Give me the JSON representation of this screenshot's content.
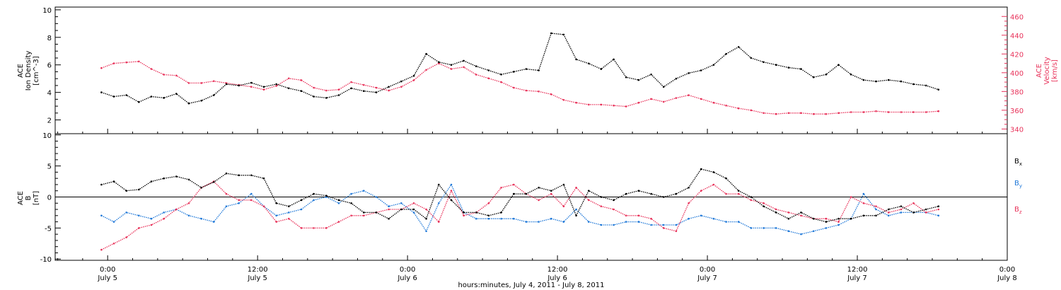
{
  "chart_data": [
    {
      "type": "scatter",
      "panel": "top",
      "ylabel_lines": [
        "ACE",
        "Ion Density",
        "[cm^-3]"
      ],
      "y2label_lines": [
        "ACE",
        "Velocity",
        "[km/s]"
      ],
      "ylim": [
        1,
        10.2
      ],
      "yticks": [
        2,
        4,
        6,
        8,
        10
      ],
      "y2lim": [
        335,
        470
      ],
      "y2ticks": [
        340,
        360,
        380,
        400,
        420,
        440,
        460
      ],
      "series_colors": {
        "density": "#000000",
        "velocity": "#e8325a"
      },
      "series": [
        {
          "name": "",
          "color": "#000000",
          "axis": "left",
          "t": [
            -0.5,
            0.5,
            1.5,
            2.5,
            3.5,
            4.5,
            5.5,
            6.5,
            7.5,
            8.5,
            9.5,
            10.5,
            11.5,
            12.5,
            13.5,
            14.5,
            15.5,
            16.5,
            17.5,
            18.5,
            19.5,
            20.5,
            21.5,
            22.5,
            23.5,
            24.5,
            25.5,
            26.5,
            27.5,
            28.5,
            29.5,
            30.5,
            31.5,
            32.5,
            33.5,
            34.5,
            35.5,
            36.5,
            37.5,
            38.5,
            39.5,
            40.5,
            41.5,
            42.5,
            43.5,
            44.5,
            45.5,
            46.5,
            47.5,
            48.5,
            49.5,
            50.5,
            51.5,
            52.5,
            53.5,
            54.5,
            55.5,
            56.5,
            57.5,
            58.5,
            59.5,
            60.5,
            61.5,
            62.5,
            63.5,
            64.5,
            65.5,
            66.5
          ],
          "values": [
            4.0,
            3.7,
            3.8,
            3.3,
            3.7,
            3.6,
            3.9,
            3.2,
            3.4,
            3.8,
            4.6,
            4.5,
            4.7,
            4.4,
            4.6,
            4.3,
            4.1,
            3.7,
            3.6,
            3.8,
            4.3,
            4.1,
            4.0,
            4.4,
            4.8,
            5.2,
            6.8,
            6.2,
            6.0,
            6.3,
            5.9,
            5.6,
            5.3,
            5.5,
            5.7,
            5.6,
            8.3,
            8.2,
            6.4,
            6.1,
            5.7,
            6.4,
            5.1,
            4.9,
            5.3,
            4.4,
            5.0,
            5.4,
            5.6,
            6.0,
            6.8,
            7.3,
            6.5,
            6.2,
            6.0,
            5.8,
            5.7,
            5.1,
            5.3,
            6.0,
            5.3,
            4.9,
            4.8,
            4.9,
            4.8,
            4.6,
            4.5,
            4.2
          ]
        },
        {
          "name": "",
          "color": "#e8325a",
          "axis": "right",
          "t": [
            -0.5,
            0.5,
            1.5,
            2.5,
            3.5,
            4.5,
            5.5,
            6.5,
            7.5,
            8.5,
            9.5,
            10.5,
            11.5,
            12.5,
            13.5,
            14.5,
            15.5,
            16.5,
            17.5,
            18.5,
            19.5,
            20.5,
            21.5,
            22.5,
            23.5,
            24.5,
            25.5,
            26.5,
            27.5,
            28.5,
            29.5,
            30.5,
            31.5,
            32.5,
            33.5,
            34.5,
            35.5,
            36.5,
            37.5,
            38.5,
            39.5,
            40.5,
            41.5,
            42.5,
            43.5,
            44.5,
            45.5,
            46.5,
            47.5,
            48.5,
            49.5,
            50.5,
            51.5,
            52.5,
            53.5,
            54.5,
            55.5,
            56.5,
            57.5,
            58.5,
            59.5,
            60.5,
            61.5,
            62.5,
            63.5,
            64.5,
            65.5,
            66.5
          ],
          "values": [
            405,
            410,
            411,
            412,
            404,
            398,
            397,
            389,
            389,
            391,
            389,
            387,
            385,
            382,
            386,
            394,
            392,
            384,
            381,
            382,
            390,
            387,
            384,
            381,
            385,
            392,
            403,
            410,
            404,
            406,
            398,
            394,
            390,
            384,
            381,
            380,
            377,
            371,
            368,
            366,
            366,
            365,
            364,
            368,
            372,
            369,
            373,
            376,
            372,
            368,
            365,
            362,
            360,
            357,
            356,
            357,
            357,
            356,
            356,
            357,
            358,
            358,
            359,
            358,
            358,
            358,
            358,
            359
          ]
        }
      ]
    },
    {
      "type": "scatter",
      "panel": "bottom",
      "ylabel_lines": [
        "ACE",
        "B",
        "[nT]"
      ],
      "ylim": [
        -10.2,
        10.2
      ],
      "yticks": [
        -10,
        -5,
        0,
        5,
        10
      ],
      "zero_line": true,
      "series": [
        {
          "name": "Bx",
          "color": "#000000",
          "t": [
            -0.5,
            0.5,
            1.5,
            2.5,
            3.5,
            4.5,
            5.5,
            6.5,
            7.5,
            8.5,
            9.5,
            10.5,
            11.5,
            12.5,
            13.5,
            14.5,
            15.5,
            16.5,
            17.5,
            18.5,
            19.5,
            20.5,
            21.5,
            22.5,
            23.5,
            24.5,
            25.5,
            26.5,
            27.5,
            28.5,
            29.5,
            30.5,
            31.5,
            32.5,
            33.5,
            34.5,
            35.5,
            36.5,
            37.5,
            38.5,
            39.5,
            40.5,
            41.5,
            42.5,
            43.5,
            44.5,
            45.5,
            46.5,
            47.5,
            48.5,
            49.5,
            50.5,
            51.5,
            52.5,
            53.5,
            54.5,
            55.5,
            56.5,
            57.5,
            58.5,
            59.5,
            60.5,
            61.5,
            62.5,
            63.5,
            64.5,
            65.5,
            66.5
          ],
          "values": [
            2.0,
            2.5,
            1.0,
            1.2,
            2.5,
            3.0,
            3.3,
            2.8,
            1.5,
            2.4,
            3.8,
            3.5,
            3.5,
            3.0,
            -1.0,
            -1.5,
            -0.5,
            0.5,
            0.2,
            -0.5,
            -1.0,
            -2.5,
            -2.5,
            -3.5,
            -2.0,
            -2.0,
            -3.5,
            2.0,
            -0.5,
            -2.5,
            -2.5,
            -3.0,
            -2.5,
            0.5,
            0.5,
            1.5,
            1.0,
            2.0,
            -3.0,
            1.0,
            0.0,
            -0.5,
            0.5,
            1.0,
            0.5,
            0.0,
            0.5,
            1.5,
            4.5,
            4.0,
            3.0,
            1.0,
            0.0,
            -1.5,
            -2.5,
            -3.5,
            -2.5,
            -3.5,
            -4.0,
            -3.5,
            -3.5,
            -3.0,
            -3.0,
            -2.0,
            -1.5,
            -2.5,
            -2.0,
            -1.5
          ]
        },
        {
          "name": "By",
          "color": "#1f78d8",
          "t": [
            -0.5,
            0.5,
            1.5,
            2.5,
            3.5,
            4.5,
            5.5,
            6.5,
            7.5,
            8.5,
            9.5,
            10.5,
            11.5,
            12.5,
            13.5,
            14.5,
            15.5,
            16.5,
            17.5,
            18.5,
            19.5,
            20.5,
            21.5,
            22.5,
            23.5,
            24.5,
            25.5,
            26.5,
            27.5,
            28.5,
            29.5,
            30.5,
            31.5,
            32.5,
            33.5,
            34.5,
            35.5,
            36.5,
            37.5,
            38.5,
            39.5,
            40.5,
            41.5,
            42.5,
            43.5,
            44.5,
            45.5,
            46.5,
            47.5,
            48.5,
            49.5,
            50.5,
            51.5,
            52.5,
            53.5,
            54.5,
            55.5,
            56.5,
            57.5,
            58.5,
            59.5,
            60.5,
            61.5,
            62.5,
            63.5,
            64.5,
            65.5,
            66.5
          ],
          "values": [
            -3.0,
            -4.0,
            -2.5,
            -3.0,
            -3.5,
            -2.5,
            -2.0,
            -3.0,
            -3.5,
            -4.0,
            -1.5,
            -1.0,
            0.5,
            -1.5,
            -3.0,
            -2.5,
            -2.0,
            -0.5,
            0.0,
            -1.0,
            0.5,
            1.0,
            0.0,
            -1.5,
            -1.0,
            -2.5,
            -5.5,
            -1.0,
            2.0,
            -2.5,
            -3.5,
            -3.5,
            -3.5,
            -3.5,
            -4.0,
            -4.0,
            -3.5,
            -4.0,
            -2.0,
            -4.0,
            -4.5,
            -4.5,
            -4.0,
            -4.0,
            -4.5,
            -4.5,
            -4.5,
            -3.5,
            -3.0,
            -3.5,
            -4.0,
            -4.0,
            -5.0,
            -5.0,
            -5.0,
            -5.5,
            -6.0,
            -5.5,
            -5.0,
            -4.5,
            -3.5,
            0.5,
            -2.0,
            -3.0,
            -2.5,
            -2.5,
            -2.5,
            -3.0
          ]
        },
        {
          "name": "Bz",
          "color": "#e8325a",
          "t": [
            -0.5,
            0.5,
            1.5,
            2.5,
            3.5,
            4.5,
            5.5,
            6.5,
            7.5,
            8.5,
            9.5,
            10.5,
            11.5,
            12.5,
            13.5,
            14.5,
            15.5,
            16.5,
            17.5,
            18.5,
            19.5,
            20.5,
            21.5,
            22.5,
            23.5,
            24.5,
            25.5,
            26.5,
            27.5,
            28.5,
            29.5,
            30.5,
            31.5,
            32.5,
            33.5,
            34.5,
            35.5,
            36.5,
            37.5,
            38.5,
            39.5,
            40.5,
            41.5,
            42.5,
            43.5,
            44.5,
            45.5,
            46.5,
            47.5,
            48.5,
            49.5,
            50.5,
            51.5,
            52.5,
            53.5,
            54.5,
            55.5,
            56.5,
            57.5,
            58.5,
            59.5,
            60.5,
            61.5,
            62.5,
            63.5,
            64.5,
            65.5,
            66.5
          ],
          "values": [
            -8.5,
            -7.5,
            -6.5,
            -5.0,
            -4.5,
            -3.5,
            -2.0,
            -1.0,
            1.5,
            2.5,
            0.5,
            -0.5,
            -0.5,
            -1.5,
            -4.0,
            -3.5,
            -5.0,
            -5.0,
            -5.0,
            -4.0,
            -3.0,
            -3.0,
            -2.5,
            -2.0,
            -2.0,
            -1.0,
            -2.0,
            -4.0,
            1.0,
            -3.0,
            -2.5,
            -1.0,
            1.5,
            2.0,
            0.5,
            -0.5,
            0.5,
            -1.5,
            1.5,
            -0.5,
            -1.5,
            -2.0,
            -3.0,
            -3.0,
            -3.5,
            -5.0,
            -5.5,
            -1.0,
            1.0,
            2.0,
            0.5,
            0.5,
            -0.5,
            -1.0,
            -2.0,
            -2.5,
            -3.0,
            -3.5,
            -3.5,
            -4.0,
            0.0,
            -1.0,
            -1.5,
            -2.5,
            -2.0,
            -1.0,
            -2.5,
            -2.0
          ]
        }
      ],
      "legend_entries": [
        {
          "main": "B",
          "sub": "x",
          "color": "#000000"
        },
        {
          "main": "B",
          "sub": "y",
          "color": "#1f78d8"
        },
        {
          "main": "B",
          "sub": "z",
          "color": "#e8325a"
        }
      ]
    }
  ],
  "x_axis": {
    "tick_time_labels": [
      "0:00",
      "12:00",
      "0:00",
      "12:00",
      "0:00",
      "12:00",
      "0:00"
    ],
    "tick_date_labels": [
      "July 5",
      "July 5",
      "July 6",
      "July 6",
      "July 7",
      "July 7",
      "July 8"
    ],
    "title": "hours:minutes, July  4, 2011 - July  8, 2011"
  }
}
